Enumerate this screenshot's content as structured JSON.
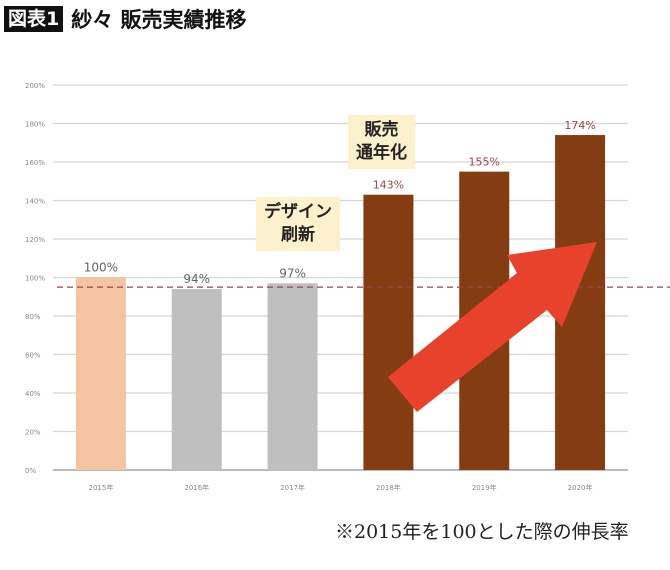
{
  "header": {
    "badge": "図表1",
    "title": "紗々 販売実績推移"
  },
  "note": "※2015年を100とした際の伸長率",
  "annotations": [
    {
      "line1": "デザイン",
      "line2": "刷新"
    },
    {
      "line1": "販売",
      "line2": "通年化"
    }
  ],
  "chart_data": {
    "type": "bar",
    "categories": [
      "2015年",
      "2016年",
      "2017年",
      "2018年",
      "2019年",
      "2020年"
    ],
    "values": [
      100,
      94,
      97,
      143,
      155,
      174
    ],
    "data_labels": [
      "100%",
      "94%",
      "97%",
      "143%",
      "155%",
      "174%"
    ],
    "bar_colors": [
      "#f4c4a3",
      "#bfbfbf",
      "#bfbfbf",
      "#843c12",
      "#843c12",
      "#843c12"
    ],
    "label_colors": [
      "#666666",
      "#666666",
      "#666666",
      "#a0404a",
      "#a0404a",
      "#a0404a"
    ],
    "ylim": [
      0,
      200
    ],
    "yticks": [
      "0%",
      "20%",
      "40%",
      "60%",
      "80%",
      "100%",
      "120%",
      "140%",
      "160%",
      "180%",
      "200%"
    ],
    "grid": true,
    "reference_line": {
      "value": 95,
      "style": "dashed",
      "color": "#a0404a"
    },
    "arrow_color": "#e8412c"
  }
}
